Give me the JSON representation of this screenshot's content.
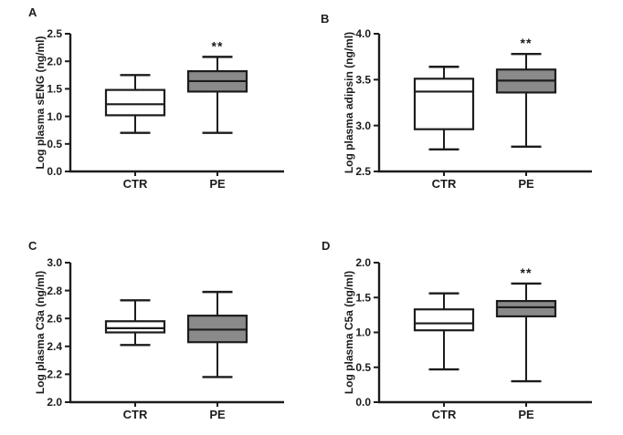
{
  "figure": {
    "background": "#ffffff",
    "line_color": "#1c1c1c",
    "ctr_box_fill": "#ffffff",
    "pe_box_fill": "#8a8a8a",
    "significance_marker": "**"
  },
  "chart_data": [
    {
      "type": "box",
      "panel": "A",
      "ylabel": "Log plasma sENG (ng/ml)",
      "ylim": [
        0.0,
        2.5
      ],
      "yticks": [
        "0.0",
        "0.5",
        "1.0",
        "1.5",
        "2.0",
        "2.5"
      ],
      "categories": [
        "CTR",
        "PE"
      ],
      "boxes": [
        {
          "category": "CTR",
          "whisker_low": 0.7,
          "q1": 1.02,
          "median": 1.22,
          "q3": 1.48,
          "whisker_high": 1.75,
          "fill": "#ffffff",
          "significance": ""
        },
        {
          "category": "PE",
          "whisker_low": 0.7,
          "q1": 1.45,
          "median": 1.64,
          "q3": 1.82,
          "whisker_high": 2.08,
          "fill": "#8a8a8a",
          "significance": "**"
        }
      ]
    },
    {
      "type": "box",
      "panel": "B",
      "ylabel": "Log plasma adipsin (ng/ml)",
      "ylim": [
        2.5,
        4.0
      ],
      "yticks": [
        "2.5",
        "3.0",
        "3.5",
        "4.0"
      ],
      "categories": [
        "CTR",
        "PE"
      ],
      "boxes": [
        {
          "category": "CTR",
          "whisker_low": 2.74,
          "q1": 2.96,
          "median": 3.37,
          "q3": 3.51,
          "whisker_high": 3.64,
          "fill": "#ffffff",
          "significance": ""
        },
        {
          "category": "PE",
          "whisker_low": 2.77,
          "q1": 3.36,
          "median": 3.49,
          "q3": 3.61,
          "whisker_high": 3.78,
          "fill": "#8a8a8a",
          "significance": "**"
        }
      ]
    },
    {
      "type": "box",
      "panel": "C",
      "ylabel": "Log plasma C3a (ng/ml)",
      "ylim": [
        2.0,
        3.0
      ],
      "yticks": [
        "2.0",
        "2.2",
        "2.4",
        "2.6",
        "2.8",
        "3.0"
      ],
      "categories": [
        "CTR",
        "PE"
      ],
      "boxes": [
        {
          "category": "CTR",
          "whisker_low": 2.41,
          "q1": 2.5,
          "median": 2.53,
          "q3": 2.58,
          "whisker_high": 2.73,
          "fill": "#ffffff",
          "significance": ""
        },
        {
          "category": "PE",
          "whisker_low": 2.18,
          "q1": 2.43,
          "median": 2.52,
          "q3": 2.62,
          "whisker_high": 2.79,
          "fill": "#8a8a8a",
          "significance": ""
        }
      ]
    },
    {
      "type": "box",
      "panel": "D",
      "ylabel": "Log plasma C5a (ng/ml)",
      "ylim": [
        0.0,
        2.0
      ],
      "yticks": [
        "0.0",
        "0.5",
        "1.0",
        "1.5",
        "2.0"
      ],
      "categories": [
        "CTR",
        "PE"
      ],
      "boxes": [
        {
          "category": "CTR",
          "whisker_low": 0.47,
          "q1": 1.03,
          "median": 1.13,
          "q3": 1.33,
          "whisker_high": 1.56,
          "fill": "#ffffff",
          "significance": ""
        },
        {
          "category": "PE",
          "whisker_low": 0.3,
          "q1": 1.23,
          "median": 1.36,
          "q3": 1.45,
          "whisker_high": 1.7,
          "fill": "#8a8a8a",
          "significance": "**"
        }
      ]
    }
  ]
}
